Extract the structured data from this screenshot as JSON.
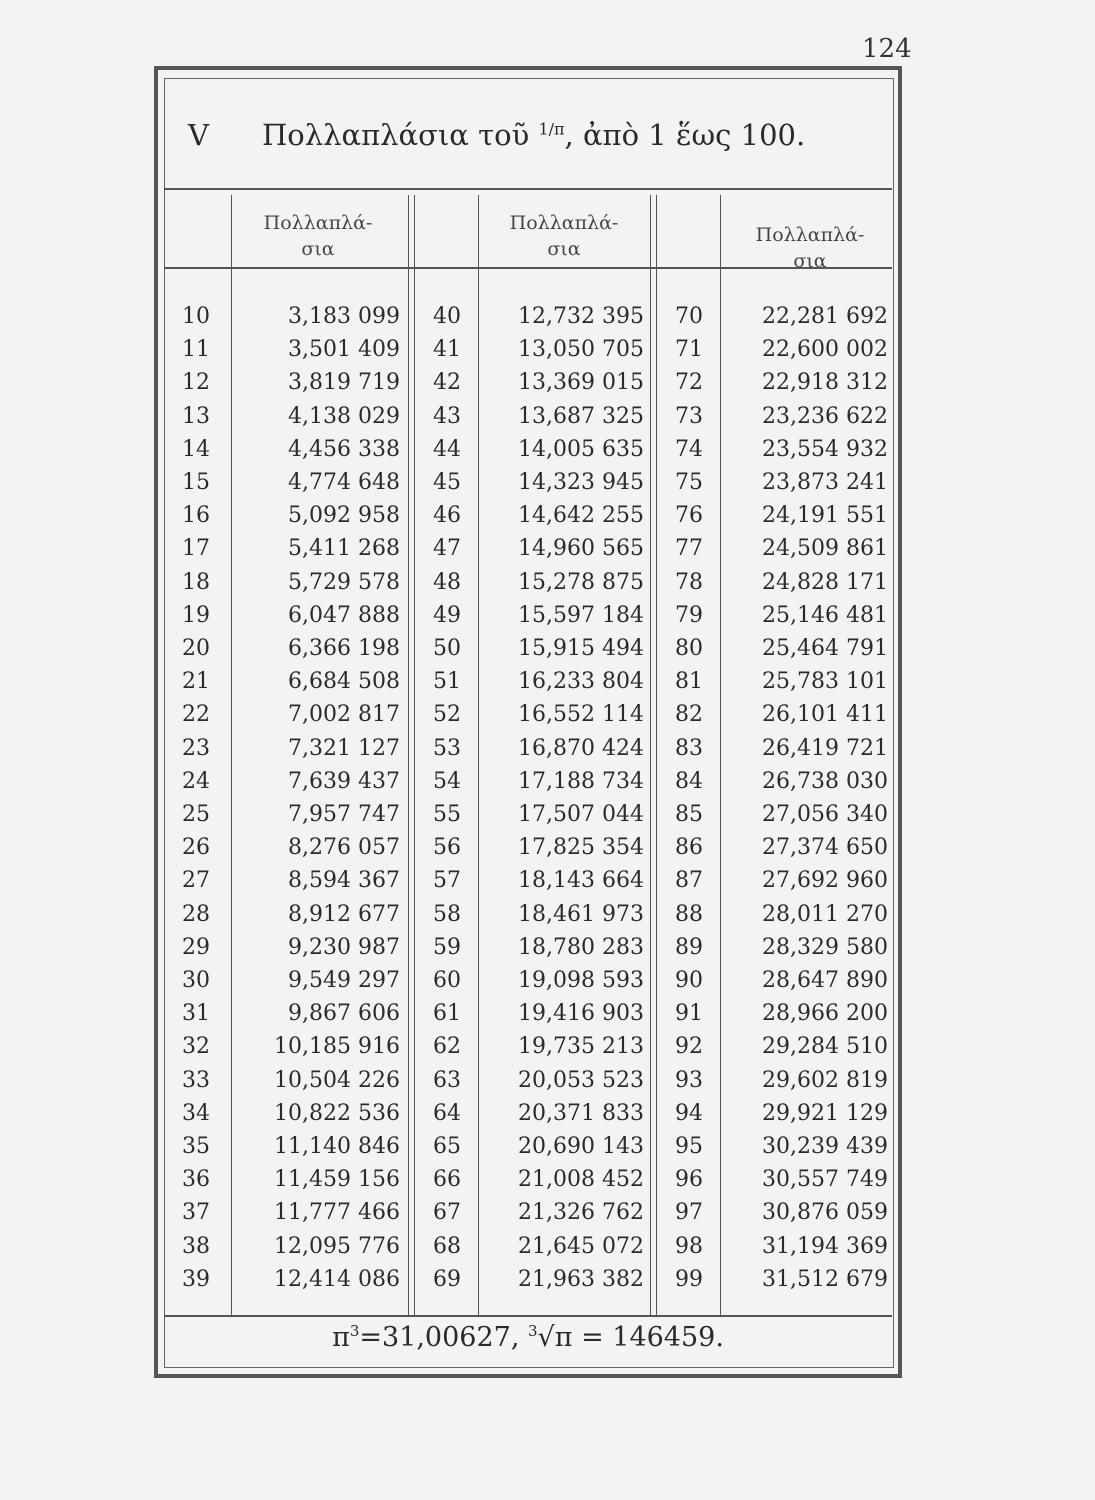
{
  "page_number": "124",
  "title": {
    "numeral": "V",
    "text_before": "Πολλαπλάσια τοῦ ",
    "fraction": "1/π",
    "text_after": ", ἀπὸ 1 ἕως 100."
  },
  "column_header": "Πολλαπλά-σια",
  "rows": [
    [
      [
        "10",
        "3,183 099"
      ],
      [
        "40",
        "12,732 395"
      ],
      [
        "70",
        "22,281 692"
      ]
    ],
    [
      [
        "11",
        "3,501 409"
      ],
      [
        "41",
        "13,050 705"
      ],
      [
        "71",
        "22,600 002"
      ]
    ],
    [
      [
        "12",
        "3,819 719"
      ],
      [
        "42",
        "13,369 015"
      ],
      [
        "72",
        "22,918 312"
      ]
    ],
    [
      [
        "13",
        "4,138 029"
      ],
      [
        "43",
        "13,687 325"
      ],
      [
        "73",
        "23,236 622"
      ]
    ],
    [
      [
        "14",
        "4,456 338"
      ],
      [
        "44",
        "14,005 635"
      ],
      [
        "74",
        "23,554 932"
      ]
    ],
    [
      [
        "15",
        "4,774 648"
      ],
      [
        "45",
        "14,323 945"
      ],
      [
        "75",
        "23,873 241"
      ]
    ],
    [
      [
        "16",
        "5,092 958"
      ],
      [
        "46",
        "14,642 255"
      ],
      [
        "76",
        "24,191 551"
      ]
    ],
    [
      [
        "17",
        "5,411 268"
      ],
      [
        "47",
        "14,960 565"
      ],
      [
        "77",
        "24,509 861"
      ]
    ],
    [
      [
        "18",
        "5,729 578"
      ],
      [
        "48",
        "15,278 875"
      ],
      [
        "78",
        "24,828 171"
      ]
    ],
    [
      [
        "19",
        "6,047 888"
      ],
      [
        "49",
        "15,597 184"
      ],
      [
        "79",
        "25,146 481"
      ]
    ],
    [
      [
        "20",
        "6,366 198"
      ],
      [
        "50",
        "15,915 494"
      ],
      [
        "80",
        "25,464 791"
      ]
    ],
    [
      [
        "21",
        "6,684 508"
      ],
      [
        "51",
        "16,233 804"
      ],
      [
        "81",
        "25,783 101"
      ]
    ],
    [
      [
        "22",
        "7,002 817"
      ],
      [
        "52",
        "16,552 114"
      ],
      [
        "82",
        "26,101 411"
      ]
    ],
    [
      [
        "23",
        "7,321 127"
      ],
      [
        "53",
        "16,870 424"
      ],
      [
        "83",
        "26,419 721"
      ]
    ],
    [
      [
        "24",
        "7,639 437"
      ],
      [
        "54",
        "17,188 734"
      ],
      [
        "84",
        "26,738 030"
      ]
    ],
    [
      [
        "25",
        "7,957 747"
      ],
      [
        "55",
        "17,507 044"
      ],
      [
        "85",
        "27,056 340"
      ]
    ],
    [
      [
        "26",
        "8,276 057"
      ],
      [
        "56",
        "17,825 354"
      ],
      [
        "86",
        "27,374 650"
      ]
    ],
    [
      [
        "27",
        "8,594 367"
      ],
      [
        "57",
        "18,143 664"
      ],
      [
        "87",
        "27,692 960"
      ]
    ],
    [
      [
        "28",
        "8,912 677"
      ],
      [
        "58",
        "18,461 973"
      ],
      [
        "88",
        "28,011 270"
      ]
    ],
    [
      [
        "29",
        "9,230 987"
      ],
      [
        "59",
        "18,780 283"
      ],
      [
        "89",
        "28,329 580"
      ]
    ],
    [
      [
        "30",
        "9,549 297"
      ],
      [
        "60",
        "19,098 593"
      ],
      [
        "90",
        "28,647 890"
      ]
    ],
    [
      [
        "31",
        "9,867 606"
      ],
      [
        "61",
        "19,416 903"
      ],
      [
        "91",
        "28,966 200"
      ]
    ],
    [
      [
        "32",
        "10,185 916"
      ],
      [
        "62",
        "19,735 213"
      ],
      [
        "92",
        "29,284 510"
      ]
    ],
    [
      [
        "33",
        "10,504 226"
      ],
      [
        "63",
        "20,053 523"
      ],
      [
        "93",
        "29,602 819"
      ]
    ],
    [
      [
        "34",
        "10,822 536"
      ],
      [
        "64",
        "20,371 833"
      ],
      [
        "94",
        "29,921 129"
      ]
    ],
    [
      [
        "35",
        "11,140 846"
      ],
      [
        "65",
        "20,690 143"
      ],
      [
        "95",
        "30,239 439"
      ]
    ],
    [
      [
        "36",
        "11,459 156"
      ],
      [
        "66",
        "21,008 452"
      ],
      [
        "96",
        "30,557 749"
      ]
    ],
    [
      [
        "37",
        "11,777 466"
      ],
      [
        "67",
        "21,326 762"
      ],
      [
        "97",
        "30,876 059"
      ]
    ],
    [
      [
        "38",
        "12,095 776"
      ],
      [
        "68",
        "21,645 072"
      ],
      [
        "98",
        "31,194 369"
      ]
    ],
    [
      [
        "39",
        "12,414 086"
      ],
      [
        "69",
        "21,963 382"
      ],
      [
        "99",
        "31,512 679"
      ]
    ]
  ],
  "footer": {
    "cube_lhs": "π",
    "cube_exp": "3",
    "cube_rhs": "=31,00627, ",
    "root_index": "3",
    "root_rhs": "√π = 146459."
  }
}
